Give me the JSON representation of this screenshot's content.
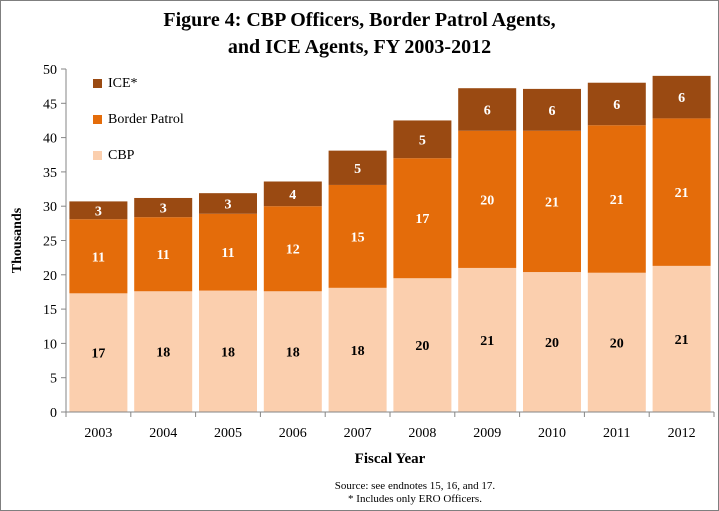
{
  "title_line1": "Figure 4: CBP Officers,  Border Patrol Agents,",
  "title_line2": "and ICE Agents, FY 2003-2012",
  "source_note": "Source:  see endnotes 15, 16, and 17.",
  "footnote": "* Includes only ERO Officers.",
  "chart_data": {
    "type": "bar",
    "stacked": true,
    "categories": [
      "2003",
      "2004",
      "2005",
      "2006",
      "2007",
      "2008",
      "2009",
      "2010",
      "2011",
      "2012"
    ],
    "series": [
      {
        "name": "CBP",
        "color": "#fbcfae",
        "values": [
          17.3,
          17.6,
          17.7,
          17.6,
          18.1,
          19.5,
          21.0,
          20.4,
          20.3,
          21.3
        ],
        "labels": [
          "17",
          "18",
          "18",
          "18",
          "18",
          "20",
          "21",
          "20",
          "20",
          "21"
        ]
      },
      {
        "name": "Border Patrol",
        "color": "#e46c0a",
        "values": [
          10.8,
          10.8,
          11.2,
          12.4,
          15.0,
          17.5,
          20.0,
          20.6,
          21.5,
          21.5
        ],
        "labels": [
          "11",
          "11",
          "11",
          "12",
          "15",
          "17",
          "20",
          "21",
          "21",
          "21"
        ]
      },
      {
        "name": "ICE*",
        "color": "#9a4a12",
        "values": [
          2.6,
          2.8,
          3.0,
          3.6,
          5.0,
          5.5,
          6.2,
          6.1,
          6.2,
          6.2
        ],
        "labels": [
          "3",
          "3",
          "3",
          "4",
          "5",
          "5",
          "6",
          "6",
          "6",
          "6"
        ]
      }
    ],
    "xlabel": "Fiscal Year",
    "ylabel": "Thousands",
    "ylim": [
      0,
      50
    ],
    "yticks": [
      "0",
      "5",
      "10",
      "15",
      "20",
      "25",
      "30",
      "35",
      "40",
      "45",
      "50"
    ],
    "grid": false,
    "legend_position": "top-left"
  }
}
